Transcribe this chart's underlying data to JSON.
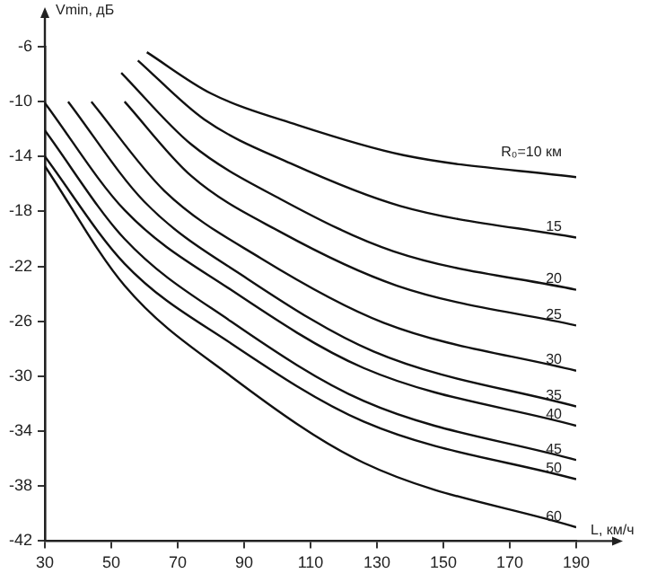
{
  "chart_data": {
    "type": "line",
    "xlabel": "L, км/ч",
    "ylabel": "Vmin, дБ",
    "xlim": [
      30,
      190
    ],
    "ylim": [
      -42,
      -6
    ],
    "xticks": [
      30,
      50,
      70,
      90,
      110,
      130,
      150,
      170,
      190
    ],
    "yticks": [
      -42,
      -38,
      -34,
      -30,
      -26,
      -22,
      -18,
      -14,
      -10,
      -6
    ],
    "grid": false,
    "legend": false,
    "marker": "none",
    "line_style": "solid",
    "series": [
      {
        "name": "R₀=10 км",
        "color": "#111111",
        "x": [
          60.7,
          80,
          106,
          138,
          190
        ],
        "values": [
          -6.4,
          -9.4,
          -11.7,
          -13.9,
          -15.5
        ]
      },
      {
        "name": "15",
        "color": "#111111",
        "x": [
          58,
          78,
          104,
          137,
          190
        ],
        "values": [
          -7.0,
          -11.3,
          -14.5,
          -17.6,
          -19.9
        ]
      },
      {
        "name": "20",
        "color": "#111111",
        "x": [
          53,
          74,
          101,
          135,
          190
        ],
        "values": [
          -7.9,
          -13.1,
          -17.1,
          -20.9,
          -23.7
        ]
      },
      {
        "name": "25",
        "color": "#111111",
        "x": [
          54,
          74,
          101,
          136,
          190
        ],
        "values": [
          -10,
          -15.4,
          -19.5,
          -23.4,
          -26.3
        ]
      },
      {
        "name": "30",
        "color": "#111111",
        "x": [
          44,
          66,
          95,
          132,
          190
        ],
        "values": [
          -10,
          -16.5,
          -21.4,
          -26.1,
          -29.6
        ]
      },
      {
        "name": "35",
        "color": "#111111",
        "x": [
          37,
          60,
          91,
          129,
          190
        ],
        "values": [
          -10,
          -17.3,
          -22.9,
          -28.2,
          -32.2
        ]
      },
      {
        "name": "40",
        "color": "#111111",
        "x": [
          30,
          54,
          86,
          126,
          190
        ],
        "values": [
          -10.1,
          -17.9,
          -23.7,
          -29.4,
          -33.6
        ]
      },
      {
        "name": "45",
        "color": "#111111",
        "x": [
          30,
          54,
          86,
          126,
          190
        ],
        "values": [
          -12.1,
          -20,
          -26,
          -31.8,
          -36.1
        ]
      },
      {
        "name": "50",
        "color": "#111111",
        "x": [
          30,
          54,
          86,
          126,
          190
        ],
        "values": [
          -14,
          -21.8,
          -27.6,
          -33.3,
          -37.5
        ]
      },
      {
        "name": "60",
        "color": "#111111",
        "x": [
          30,
          54,
          86,
          126,
          190
        ],
        "values": [
          -14.7,
          -23.4,
          -30,
          -36.3,
          -41
        ]
      }
    ]
  }
}
